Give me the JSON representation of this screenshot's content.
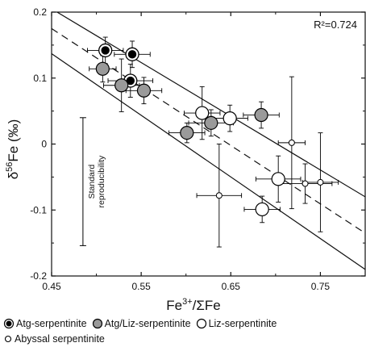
{
  "chart_data": {
    "type": "scatter",
    "title": "",
    "xlabel": "Fe3+/ΣFe",
    "ylabel": "δ56Fe (‰)",
    "xlabel_main": "Fe",
    "xlabel_sup": "3+",
    "xlabel_rest": "/ΣFe",
    "ylabel_main": "δ",
    "ylabel_sup": "56",
    "ylabel_rest": "Fe (‰)",
    "xlim": [
      0.45,
      0.8
    ],
    "ylim": [
      -0.2,
      0.2
    ],
    "xticks": [
      0.45,
      0.55,
      0.65,
      0.75
    ],
    "xtick_labels": [
      "0.45",
      "0.55",
      "0.65",
      "0.75"
    ],
    "yticks": [
      -0.2,
      -0.1,
      0,
      0.1,
      0.2
    ],
    "ytick_labels": [
      "-0.2",
      "-0.1",
      "0",
      "0.1",
      "0.2"
    ],
    "grid": false,
    "annotation_r2": "R²=0.724",
    "standard_reproducibility": {
      "label_line1": "Standard",
      "label_line2": "reproducibility",
      "x": 0.485,
      "y": -0.057,
      "err": 0.097
    },
    "series": [
      {
        "name": "Atg-serpentinite",
        "marker": "filled-black",
        "points": [
          {
            "x": 0.51,
            "y": 0.142,
            "xerr": 0.02,
            "yerr": 0.02
          },
          {
            "x": 0.54,
            "y": 0.136,
            "xerr": 0.02,
            "yerr": 0.02
          },
          {
            "x": 0.538,
            "y": 0.096,
            "xerr": 0.025,
            "yerr": 0.025
          }
        ]
      },
      {
        "name": "Atg/Liz-serpentinite",
        "marker": "gray",
        "points": [
          {
            "x": 0.507,
            "y": 0.114,
            "xerr": 0.015,
            "yerr": 0.02
          },
          {
            "x": 0.528,
            "y": 0.089,
            "xerr": 0.02,
            "yerr": 0.04
          },
          {
            "x": 0.553,
            "y": 0.081,
            "xerr": 0.02,
            "yerr": 0.02
          },
          {
            "x": 0.601,
            "y": 0.017,
            "xerr": 0.02,
            "yerr": 0.015
          },
          {
            "x": 0.628,
            "y": 0.032,
            "xerr": 0.025,
            "yerr": 0.02
          },
          {
            "x": 0.684,
            "y": 0.044,
            "xerr": 0.02,
            "yerr": 0.02
          }
        ]
      },
      {
        "name": "Liz-serpentinite",
        "marker": "open",
        "points": [
          {
            "x": 0.618,
            "y": 0.047,
            "xerr": 0.02,
            "yerr": 0.04
          },
          {
            "x": 0.649,
            "y": 0.039,
            "xerr": 0.02,
            "yerr": 0.02
          },
          {
            "x": 0.703,
            "y": -0.053,
            "xerr": 0.025,
            "yerr": 0.035
          },
          {
            "x": 0.685,
            "y": -0.099,
            "xerr": 0.02,
            "yerr": 0.02
          }
        ]
      },
      {
        "name": "Abyssal serpentinite",
        "marker": "small-open",
        "points": [
          {
            "x": 0.637,
            "y": -0.078,
            "xerr": 0.025,
            "yerr": 0.078
          },
          {
            "x": 0.718,
            "y": 0.002,
            "xerr": 0.015,
            "yerr": 0.1
          },
          {
            "x": 0.733,
            "y": -0.06,
            "xerr": 0.03,
            "yerr": 0.03
          },
          {
            "x": 0.75,
            "y": -0.058,
            "xerr": 0.02,
            "yerr": 0.075
          }
        ]
      }
    ],
    "lines": [
      {
        "name": "regression",
        "style": "dashed",
        "x": [
          0.45,
          0.8
        ],
        "y": [
          0.175,
          -0.135
        ]
      },
      {
        "name": "upper-confidence-bound",
        "style": "solid",
        "x": [
          0.45,
          0.8
        ],
        "y": [
          0.205,
          -0.08
        ]
      },
      {
        "name": "lower-confidence-bound",
        "style": "solid",
        "x": [
          0.45,
          0.8
        ],
        "y": [
          0.137,
          -0.19
        ]
      }
    ],
    "legend_position": "bottom"
  },
  "legend": {
    "items": [
      {
        "label": "Atg-serpentinite",
        "marker": "filled-black",
        "row": 0
      },
      {
        "label": "Atg/Liz-serpentinite",
        "marker": "gray",
        "row": 0
      },
      {
        "label": "Liz-serpentinite",
        "marker": "open",
        "row": 0
      },
      {
        "label": "Abyssal serpentinite",
        "marker": "small-open",
        "row": 1
      }
    ]
  },
  "colors": {
    "axis": "#111111",
    "black_fill": "#000000",
    "gray_fill": "#9a9a9a",
    "open_fill": "#ffffff",
    "line": "#111111"
  }
}
